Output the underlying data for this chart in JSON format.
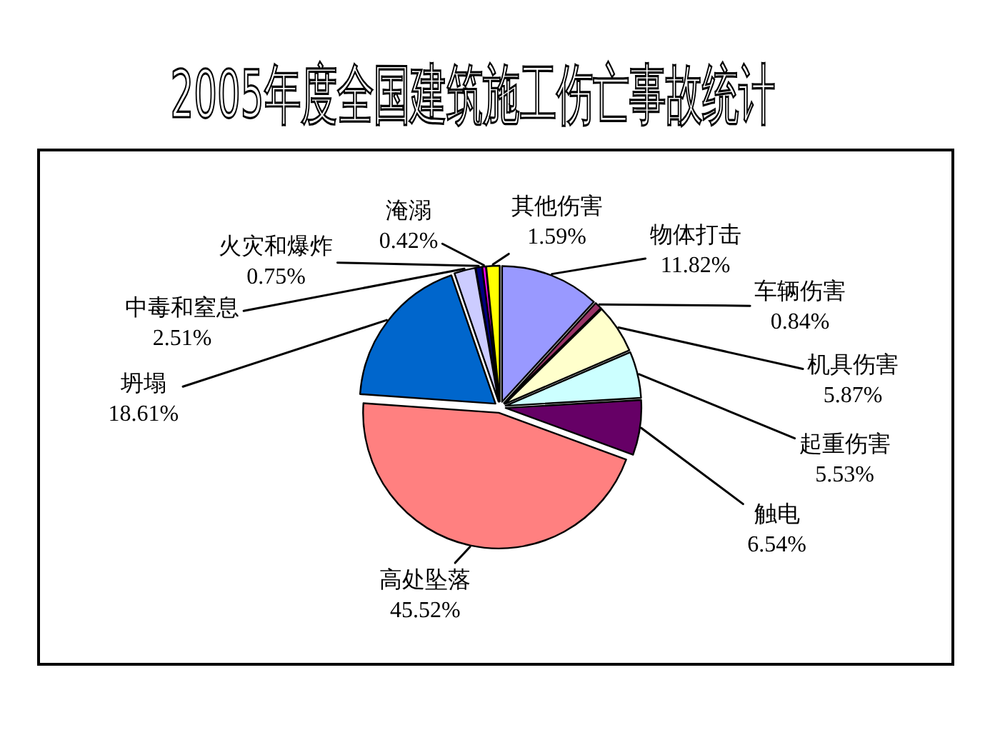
{
  "chart_data": {
    "type": "pie",
    "title": "2005年度全国建筑施工伤亡事故统计",
    "categories": [
      "物体打击",
      "车辆伤害",
      "机具伤害",
      "起重伤害",
      "触电",
      "高处坠落",
      "坍塌",
      "中毒和窒息",
      "火灾和爆炸",
      "淹溺",
      "其他伤害"
    ],
    "values": [
      11.82,
      0.84,
      5.87,
      5.53,
      6.54,
      45.52,
      18.61,
      2.51,
      0.75,
      0.42,
      1.59
    ],
    "value_labels": [
      "11.82%",
      "0.84%",
      "5.87%",
      "5.53%",
      "6.54%",
      "45.52%",
      "18.61%",
      "2.51%",
      "0.75%",
      "0.42%",
      "1.59%"
    ],
    "colors": [
      "#9999ff",
      "#993366",
      "#ffffcc",
      "#ccffff",
      "#660066",
      "#ff8080",
      "#0066cc",
      "#ccccff",
      "#000080",
      "#ff00ff",
      "#ffff00"
    ]
  }
}
